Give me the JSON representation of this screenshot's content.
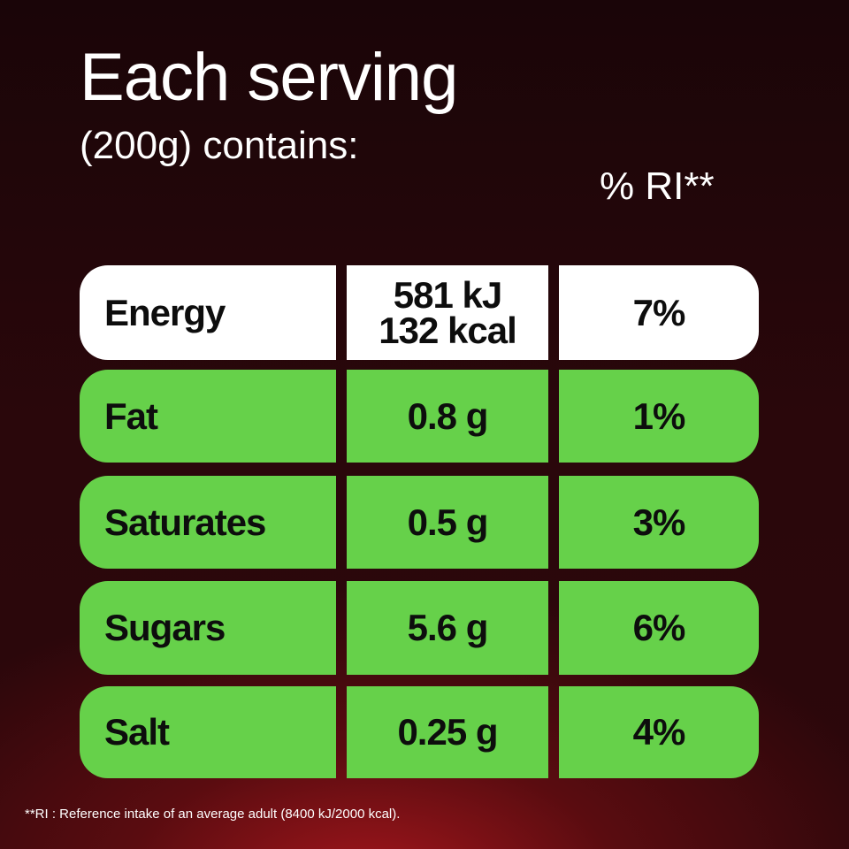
{
  "header": {
    "title": "Each serving",
    "subtitle": "(200g) contains:"
  },
  "ri_header": "% RI**",
  "rows": [
    {
      "label": "Energy",
      "amount": [
        "581 kJ",
        "132 kcal"
      ],
      "ri": "7%"
    },
    {
      "label": "Fat",
      "amount": [
        "0.8 g"
      ],
      "ri": "1%"
    },
    {
      "label": "Saturates",
      "amount": [
        "0.5 g"
      ],
      "ri": "3%"
    },
    {
      "label": "Sugars",
      "amount": [
        "5.6 g"
      ],
      "ri": "6%"
    },
    {
      "label": "Salt",
      "amount": [
        "0.25 g"
      ],
      "ri": "4%"
    }
  ],
  "footnote": "**RI : Reference intake of an average adult (8400 kJ/2000 kcal)."
}
